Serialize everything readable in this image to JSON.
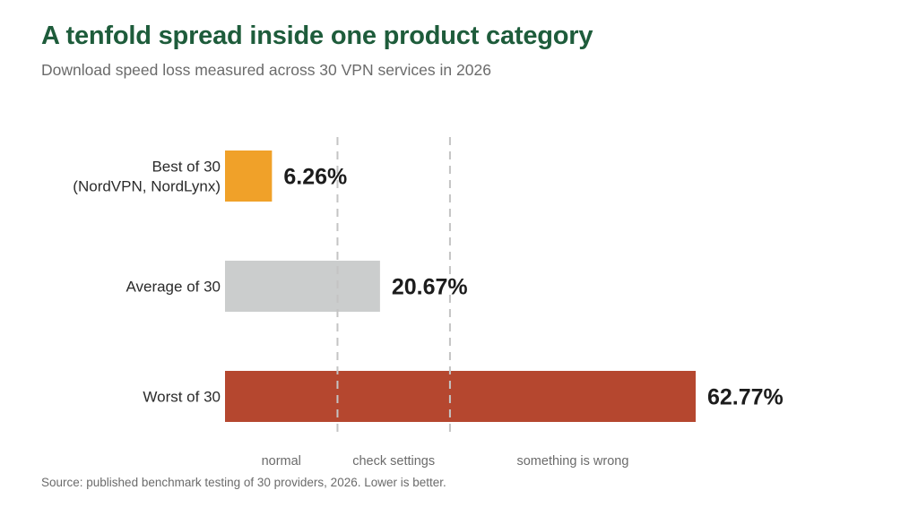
{
  "title": "A tenfold spread inside one product category",
  "subtitle": "Download speed loss measured across 30 VPN services in 2026",
  "source": "Source: published benchmark testing of 30 providers, 2026. Lower is better.",
  "chart_data": {
    "type": "bar",
    "orientation": "horizontal",
    "title": "A tenfold spread inside one product category",
    "subtitle": "Download speed loss measured across 30 VPN services in 2026",
    "categories": [
      [
        "Best of 30",
        "(NordVPN, NordLynx)"
      ],
      [
        "Average of 30"
      ],
      [
        "Worst of 30"
      ]
    ],
    "values": [
      6.26,
      20.67,
      62.77
    ],
    "value_labels": [
      "6.26%",
      "20.67%",
      "62.77%"
    ],
    "colors": [
      "#f0a129",
      "#cbcdcd",
      "#b5472f"
    ],
    "xlim": [
      0,
      62.77
    ],
    "thresholds": [
      15,
      30
    ],
    "threshold_style": "dashed",
    "zones": [
      {
        "label": "normal",
        "from": 0,
        "to": 15
      },
      {
        "label": "check settings",
        "from": 15,
        "to": 30
      },
      {
        "label": "something is wrong",
        "from": 30,
        "to": 62.77
      }
    ],
    "grid": false,
    "legend": "none"
  }
}
